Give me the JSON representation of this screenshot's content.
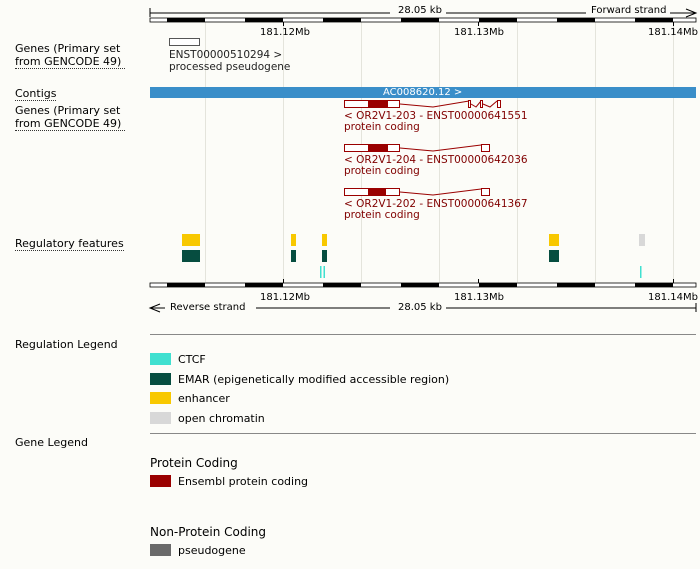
{
  "colors": {
    "protein_coding": "#9a0000",
    "pseudogene": "#6a6a6a",
    "contig": "#3a8ec9",
    "ctcf": "#40e0d0",
    "emar": "#064d40",
    "enhancer": "#f8c800",
    "open_chromatin": "#d8d8d8"
  },
  "top_ruler": {
    "span": "28.05 kb",
    "strand": "Forward strand",
    "ticks": [
      "181.12Mb",
      "181.13Mb",
      "181.14Mb"
    ]
  },
  "bottom_ruler": {
    "span": "28.05 kb",
    "strand": "Reverse strand",
    "ticks": [
      "181.12Mb",
      "181.13Mb",
      "181.14Mb"
    ]
  },
  "tracks": {
    "genes_forward_label": "Genes (Primary set from GENCODE 49)",
    "pseudogene_id": "ENST00000510294 >",
    "pseudogene_type": "processed pseudogene",
    "contigs_label": "Contigs",
    "contig_name": "AC008620.12 >",
    "genes_reverse_label": "Genes (Primary set from GENCODE 49)",
    "transcripts": [
      {
        "id": "< OR2V1-203 - ENST00000641551",
        "type": "protein coding"
      },
      {
        "id": "< OR2V1-204 - ENST00000642036",
        "type": "protein coding"
      },
      {
        "id": "< OR2V1-202 - ENST00000641367",
        "type": "protein coding"
      }
    ],
    "regulatory_label": "Regulatory features"
  },
  "regulation_legend": {
    "title": "Regulation Legend",
    "items": [
      "CTCF",
      "EMAR (epigenetically modified accessible region)",
      "enhancer",
      "open chromatin"
    ]
  },
  "gene_legend": {
    "title": "Gene Legend",
    "protein_coding_heading": "Protein Coding",
    "protein_coding_item": "Ensembl protein coding",
    "non_protein_heading": "Non-Protein Coding",
    "non_protein_item": "pseudogene"
  }
}
